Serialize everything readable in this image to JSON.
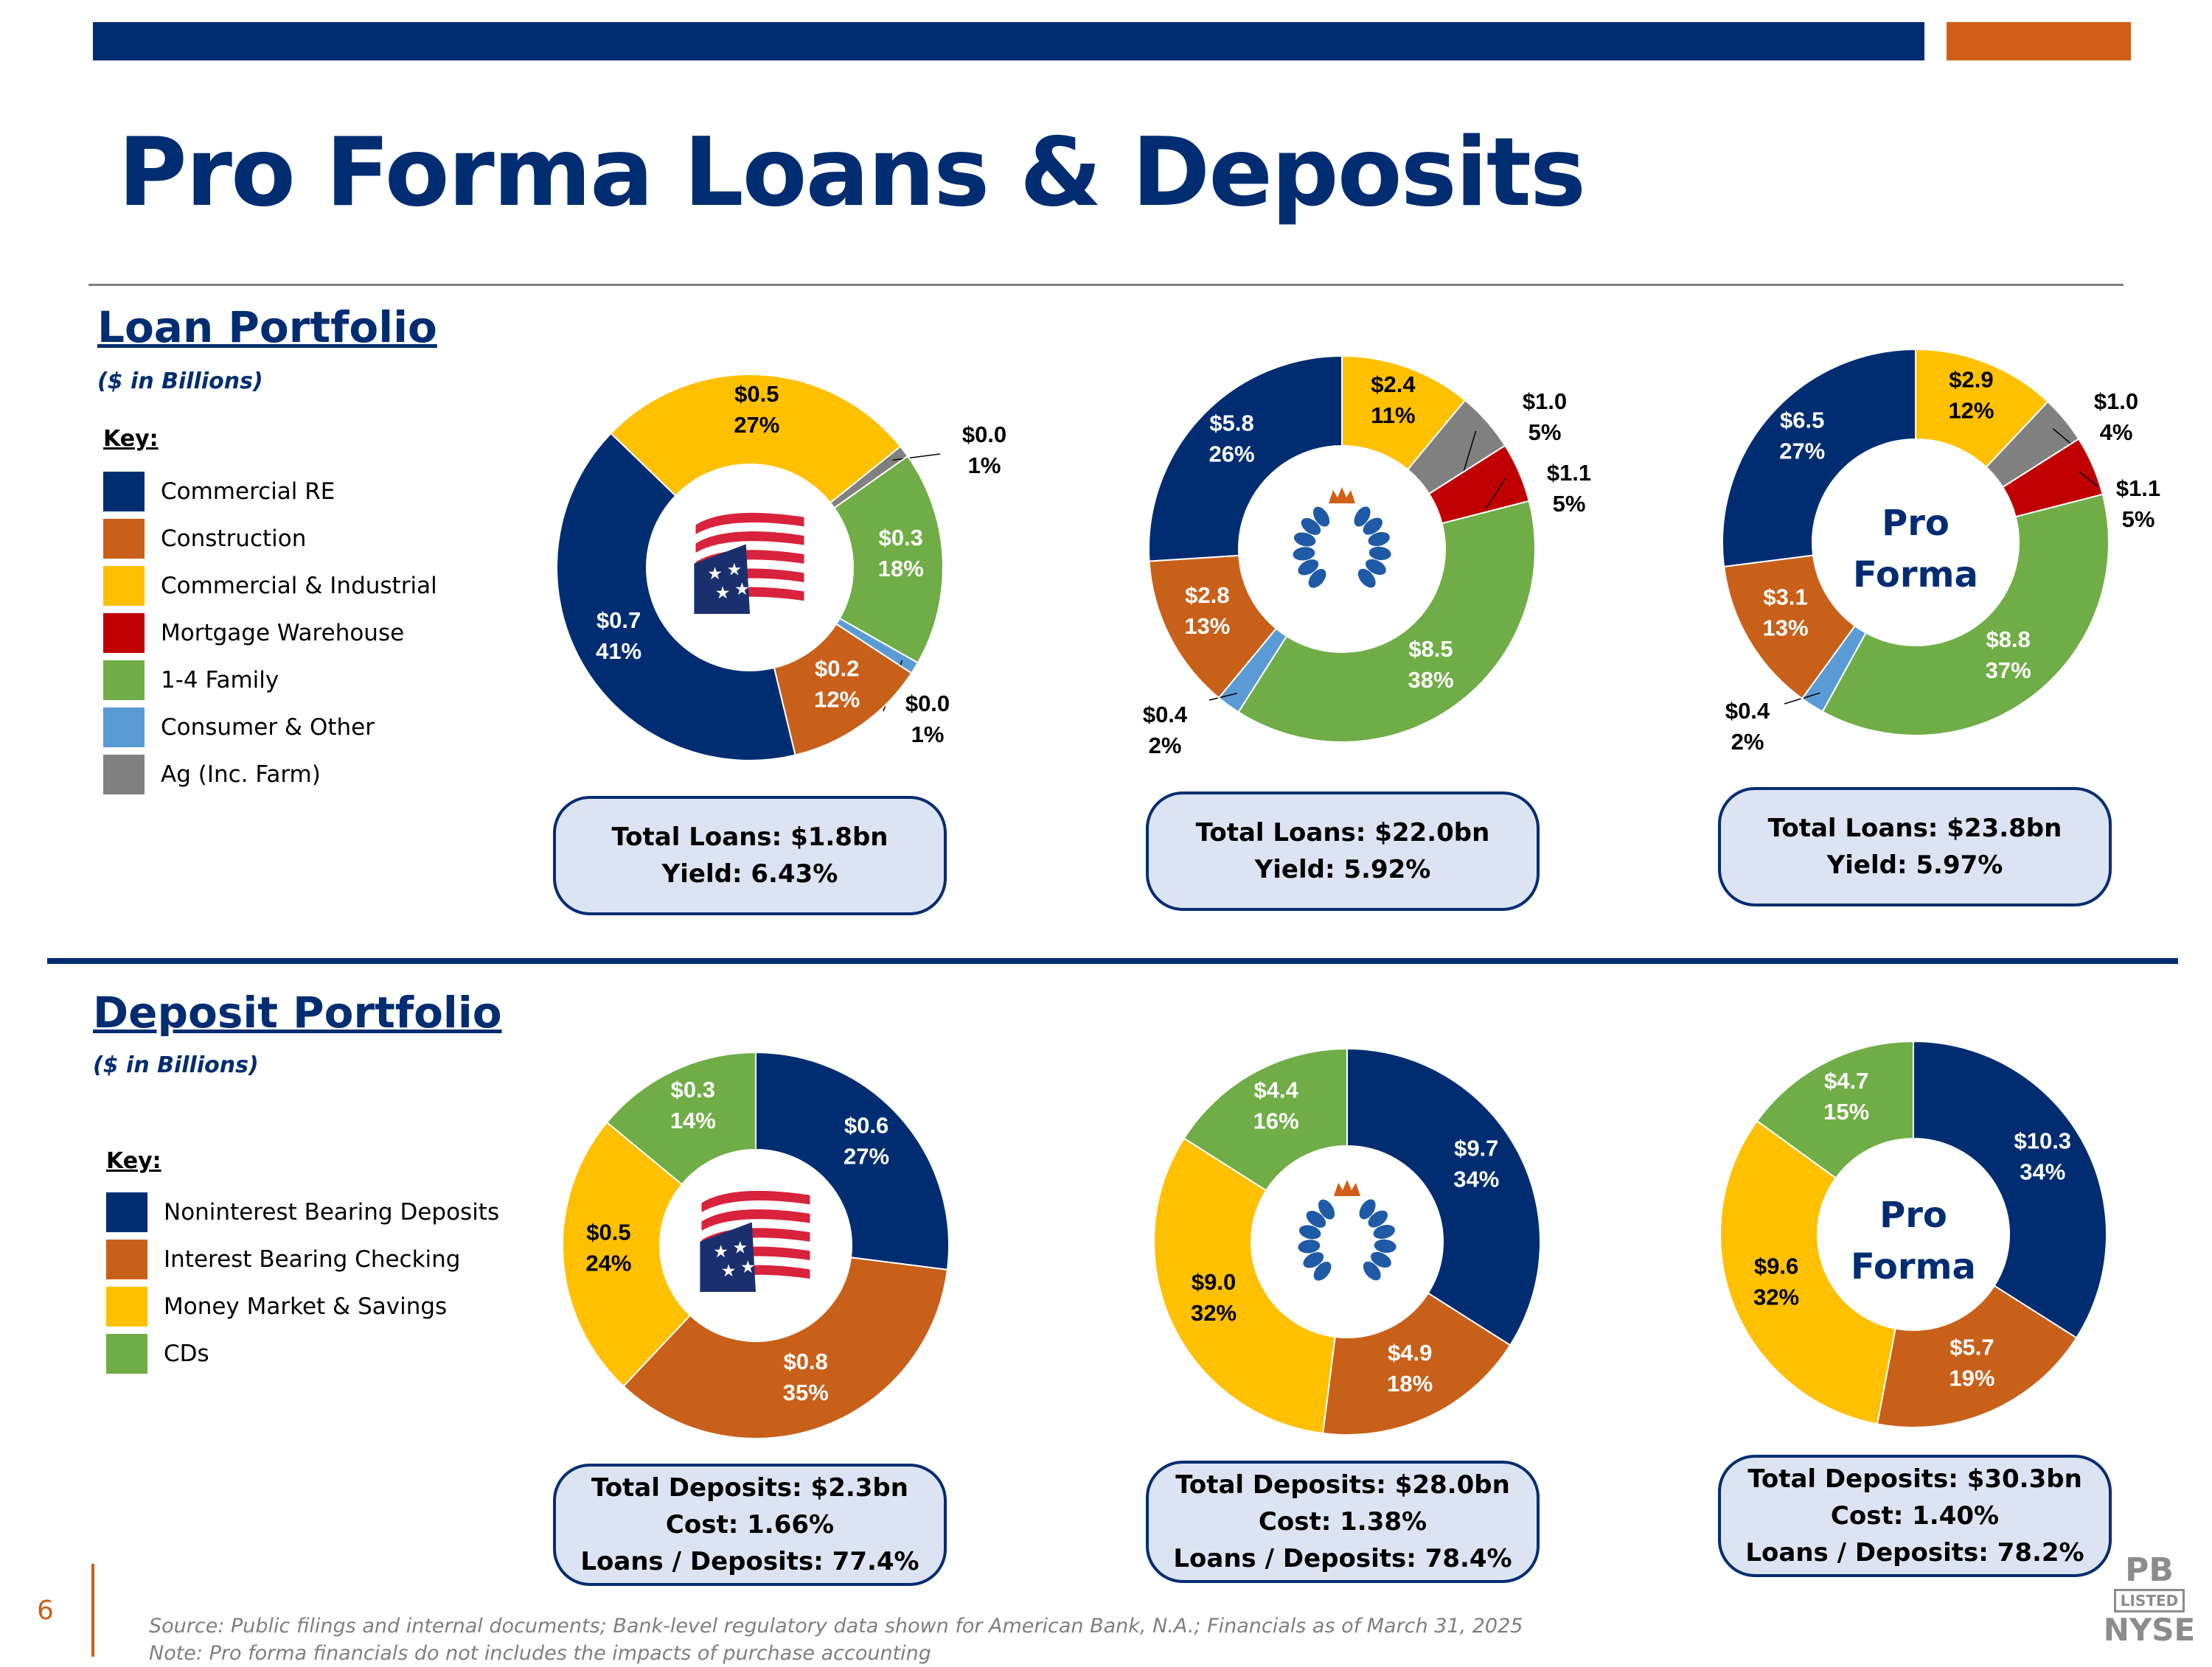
{
  "page": {
    "title": "Pro Forma Loans & Deposits",
    "page_number": "6",
    "source_line1": "Source: Public filings and internal documents; Bank-level regulatory data shown for American Bank, N.A.; Financials as of March 31, 2025",
    "source_line2": "Note: Pro forma financials do not includes the impacts of purchase accounting",
    "exchange_badge": {
      "top": "PB",
      "middle": "LISTED",
      "bottom": "NYSE"
    },
    "colors": {
      "navy": "#002d72",
      "orange": "#d05e16"
    }
  },
  "loan": {
    "title": "Loan Portfolio",
    "subtitle": "($ in Billions)",
    "key_title": "Key:",
    "key": [
      {
        "label": "Commercial RE",
        "color": "#002d72"
      },
      {
        "label": "Construction",
        "color": "#c8601a"
      },
      {
        "label": "Commercial & Industrial",
        "color": "#ffc000"
      },
      {
        "label": "Mortgage Warehouse",
        "color": "#c00000"
      },
      {
        "label": "1-4 Family",
        "color": "#70ad47"
      },
      {
        "label": "Consumer & Other",
        "color": "#5b9bd5"
      },
      {
        "label": "Ag (Inc. Farm)",
        "color": "#808080"
      }
    ],
    "boxes": [
      {
        "line1": "Total Loans: $1.8bn",
        "line2": "Yield: 6.43%"
      },
      {
        "line1": "Total Loans: $22.0bn",
        "line2": "Yield: 5.92%"
      },
      {
        "line1": "Total Loans: $23.8bn",
        "line2": "Yield: 5.97%"
      }
    ]
  },
  "deposit": {
    "title": "Deposit Portfolio",
    "subtitle": "($ in Billions)",
    "key_title": "Key:",
    "key": [
      {
        "label": "Noninterest Bearing Deposits",
        "color": "#002d72"
      },
      {
        "label": "Interest Bearing Checking",
        "color": "#c8601a"
      },
      {
        "label": "Money Market & Savings",
        "color": "#ffc000"
      },
      {
        "label": "CDs",
        "color": "#70ad47"
      }
    ],
    "boxes": [
      {
        "line1": "Total Deposits: $2.3bn",
        "line2": "Cost: 1.66%",
        "line3": "Loans / Deposits: 77.4%"
      },
      {
        "line1": "Total Deposits: $28.0bn",
        "line2": "Cost: 1.38%",
        "line3": "Loans / Deposits: 78.4%"
      },
      {
        "line1": "Total Deposits: $30.3bn",
        "line2": "Cost: 1.40%",
        "line3": "Loans / Deposits: 78.2%"
      }
    ]
  },
  "chart_data": [
    {
      "type": "pie",
      "donut": true,
      "center": "flag-logo-icon",
      "slices": [
        {
          "label": "Commercial & Industrial",
          "value": "$0.5",
          "pct": 27,
          "color": "#ffc000"
        },
        {
          "label": "Ag (Inc. Farm)",
          "value": "$0.0",
          "pct": 1,
          "color": "#808080"
        },
        {
          "label": "1-4 Family",
          "value": "$0.3",
          "pct": 18,
          "color": "#70ad47"
        },
        {
          "label": "Consumer & Other",
          "value": "$0.0",
          "pct": 1,
          "color": "#5b9bd5"
        },
        {
          "label": "Construction",
          "value": "$0.2",
          "pct": 12,
          "color": "#c8601a"
        },
        {
          "label": "Commercial RE",
          "value": "$0.7",
          "pct": 41,
          "color": "#002d72"
        }
      ]
    },
    {
      "type": "pie",
      "donut": true,
      "center": "crown-wreath-logo-icon",
      "slices": [
        {
          "label": "Commercial & Industrial",
          "value": "$2.4",
          "pct": 11,
          "color": "#ffc000"
        },
        {
          "label": "Ag (Inc. Farm)",
          "value": "$1.0",
          "pct": 5,
          "color": "#808080"
        },
        {
          "label": "Mortgage Warehouse",
          "value": "$1.1",
          "pct": 5,
          "color": "#c00000"
        },
        {
          "label": "1-4 Family",
          "value": "$8.5",
          "pct": 38,
          "color": "#70ad47"
        },
        {
          "label": "Consumer & Other",
          "value": "$0.4",
          "pct": 2,
          "color": "#5b9bd5"
        },
        {
          "label": "Construction",
          "value": "$2.8",
          "pct": 13,
          "color": "#c8601a"
        },
        {
          "label": "Commercial RE",
          "value": "$5.8",
          "pct": 26,
          "color": "#002d72"
        }
      ]
    },
    {
      "type": "pie",
      "donut": true,
      "center_text": [
        "Pro",
        "Forma"
      ],
      "slices": [
        {
          "label": "Commercial & Industrial",
          "value": "$2.9",
          "pct": 12,
          "color": "#ffc000"
        },
        {
          "label": "Ag (Inc. Farm)",
          "value": "$1.0",
          "pct": 4,
          "color": "#808080"
        },
        {
          "label": "Mortgage Warehouse",
          "value": "$1.1",
          "pct": 5,
          "color": "#c00000"
        },
        {
          "label": "1-4 Family",
          "value": "$8.8",
          "pct": 37,
          "color": "#70ad47"
        },
        {
          "label": "Consumer & Other",
          "value": "$0.4",
          "pct": 2,
          "color": "#5b9bd5"
        },
        {
          "label": "Construction",
          "value": "$3.1",
          "pct": 13,
          "color": "#c8601a"
        },
        {
          "label": "Commercial RE",
          "value": "$6.5",
          "pct": 27,
          "color": "#002d72"
        }
      ]
    },
    {
      "type": "pie",
      "donut": true,
      "center": "flag-logo-icon",
      "slices": [
        {
          "label": "Noninterest Bearing Deposits",
          "value": "$0.6",
          "pct": 27,
          "color": "#002d72"
        },
        {
          "label": "Interest Bearing Checking",
          "value": "$0.8",
          "pct": 35,
          "color": "#c8601a"
        },
        {
          "label": "Money Market & Savings",
          "value": "$0.5",
          "pct": 24,
          "color": "#ffc000"
        },
        {
          "label": "CDs",
          "value": "$0.3",
          "pct": 14,
          "color": "#70ad47"
        }
      ]
    },
    {
      "type": "pie",
      "donut": true,
      "center": "crown-wreath-logo-icon",
      "slices": [
        {
          "label": "Noninterest Bearing Deposits",
          "value": "$9.7",
          "pct": 34,
          "color": "#002d72"
        },
        {
          "label": "Interest Bearing Checking",
          "value": "$4.9",
          "pct": 18,
          "color": "#c8601a"
        },
        {
          "label": "Money Market & Savings",
          "value": "$9.0",
          "pct": 32,
          "color": "#ffc000"
        },
        {
          "label": "CDs",
          "value": "$4.4",
          "pct": 16,
          "color": "#70ad47"
        }
      ]
    },
    {
      "type": "pie",
      "donut": true,
      "center_text": [
        "Pro",
        "Forma"
      ],
      "slices": [
        {
          "label": "Noninterest Bearing Deposits",
          "value": "$10.3",
          "pct": 34,
          "color": "#002d72"
        },
        {
          "label": "Interest Bearing Checking",
          "value": "$5.7",
          "pct": 19,
          "color": "#c8601a"
        },
        {
          "label": "Money Market & Savings",
          "value": "$9.6",
          "pct": 32,
          "color": "#ffc000"
        },
        {
          "label": "CDs",
          "value": "$4.7",
          "pct": 15,
          "color": "#70ad47"
        }
      ]
    }
  ]
}
